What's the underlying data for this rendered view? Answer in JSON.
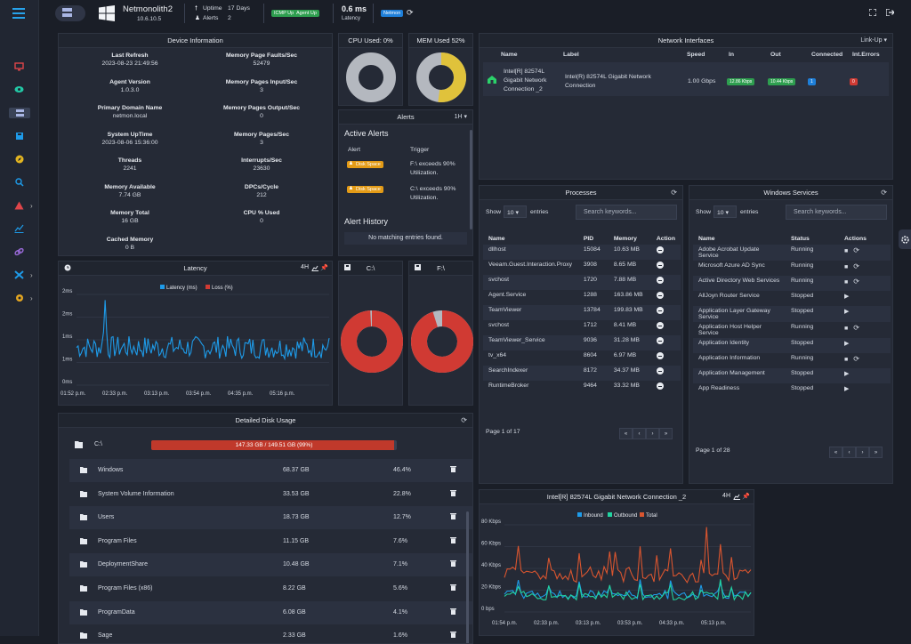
{
  "topbar": {
    "hostname": "Netmonolith2",
    "ip": "10.6.10.5",
    "uptime_label": "Uptime",
    "uptime_value": "17 Days",
    "alerts_label": "Alerts",
    "alerts_value": "2",
    "icmp_badge": "ICMP Up",
    "agent_badge": "Agent Up",
    "latency_value": "0.6 ms",
    "latency_label": "Latency",
    "netmon_badge": "Netmon"
  },
  "device_info": {
    "title": "Device Information",
    "items": [
      {
        "label": "Last Refresh",
        "value": "2023-08-23 21:49:56"
      },
      {
        "label": "Memory Page Faults/Sec",
        "value": "52479"
      },
      {
        "label": "Agent Version",
        "value": "1.0.3.0"
      },
      {
        "label": "Memory Pages Input/Sec",
        "value": "3"
      },
      {
        "label": "Primary Domain Name",
        "value": "netmon.local"
      },
      {
        "label": "Memory Pages Output/Sec",
        "value": "0"
      },
      {
        "label": "System UpTime",
        "value": "2023-08-06 15:36:00"
      },
      {
        "label": "Memory Pages/Sec",
        "value": "3"
      },
      {
        "label": "Threads",
        "value": "2241"
      },
      {
        "label": "Interrupts/Sec",
        "value": "23630"
      },
      {
        "label": "Memory Available",
        "value": "7.74 GB"
      },
      {
        "label": "DPCs/Cycle",
        "value": "212"
      },
      {
        "label": "Memory Total",
        "value": "16 GB"
      },
      {
        "label": "CPU % Used",
        "value": "0"
      },
      {
        "label": "Cached Memory",
        "value": "0 B"
      }
    ]
  },
  "cpu": {
    "title": "CPU Used: 0%",
    "used": 0
  },
  "mem": {
    "title": "MEM Used 52%",
    "used": 52
  },
  "alerts": {
    "title": "Alerts",
    "range": "1H",
    "active_title": "Active Alerts",
    "col_alert": "Alert",
    "col_trigger": "Trigger",
    "items": [
      {
        "badge": "Disk Space",
        "trigger": "F:\\ exceeds 90% Utilization."
      },
      {
        "badge": "Disk Space",
        "trigger": "C:\\ exceeds 90% Utilization."
      }
    ],
    "history_title": "Alert History",
    "history_empty": "No matching entries found."
  },
  "netif": {
    "title": "Network Interfaces",
    "filter": "Link-Up",
    "cols": [
      "Name",
      "Label",
      "Speed",
      "In",
      "Out",
      "Connected",
      "Int.Errors"
    ],
    "row": {
      "name": "Intel[R] 82574L Gigabit Network Connection _2",
      "label": "Intel(R) 82574L Gigabit Network Connection",
      "speed": "1.00 Gbps",
      "in": "12.86 Kbps",
      "out": "10.44 Kbps",
      "connected": "1",
      "errors": "0"
    }
  },
  "latency": {
    "title": "Latency",
    "range": "4H",
    "legend_latency": "Latency (ms)",
    "legend_loss": "Loss (%)",
    "yticks": [
      "2ms",
      "2ms",
      "1ms",
      "1ms",
      "0ms"
    ],
    "xticks": [
      "01:52 p.m.",
      "02:33 p.m.",
      "03:13 p.m.",
      "03:54 p.m.",
      "04:35 p.m.",
      "05:16 p.m."
    ]
  },
  "disk_c": {
    "title": "C:\\",
    "used": 99
  },
  "disk_f": {
    "title": "F:\\",
    "used": 95
  },
  "processes": {
    "title": "Processes",
    "show": "Show",
    "entries": "entries",
    "page_size": "10",
    "search": "Search keywords...",
    "cols": [
      "Name",
      "PID",
      "Memory",
      "Action"
    ],
    "rows": [
      {
        "name": "dllhost",
        "pid": "15084",
        "mem": "10.63 MB"
      },
      {
        "name": "Veeam.Guest.Interaction.Proxy",
        "pid": "3908",
        "mem": "8.65 MB"
      },
      {
        "name": "svchost",
        "pid": "1720",
        "mem": "7.88 MB"
      },
      {
        "name": "Agent.Service",
        "pid": "1288",
        "mem": "163.86 MB"
      },
      {
        "name": "TeamViewer",
        "pid": "13784",
        "mem": "199.83 MB"
      },
      {
        "name": "svchost",
        "pid": "1712",
        "mem": "8.41 MB"
      },
      {
        "name": "TeamViewer_Service",
        "pid": "9036",
        "mem": "31.28 MB"
      },
      {
        "name": "tv_x64",
        "pid": "8604",
        "mem": "6.97 MB"
      },
      {
        "name": "SearchIndexer",
        "pid": "8172",
        "mem": "34.37 MB"
      },
      {
        "name": "RuntimeBroker",
        "pid": "9464",
        "mem": "33.32 MB"
      }
    ],
    "page_info": "Page 1 of 17"
  },
  "services": {
    "title": "Windows Services",
    "show": "Show",
    "entries": "entries",
    "page_size": "10",
    "search": "Search keywords...",
    "cols": [
      "Name",
      "Status",
      "Actions"
    ],
    "rows": [
      {
        "name": "Adobe Acrobat Update Service",
        "status": "Running"
      },
      {
        "name": "Microsoft Azure AD Sync",
        "status": "Running"
      },
      {
        "name": "Active Directory Web Services",
        "status": "Running"
      },
      {
        "name": "AllJoyn Router Service",
        "status": "Stopped"
      },
      {
        "name": "Application Layer Gateway Service",
        "status": "Stopped"
      },
      {
        "name": "Application Host Helper Service",
        "status": "Running"
      },
      {
        "name": "Application Identity",
        "status": "Stopped"
      },
      {
        "name": "Application Information",
        "status": "Running"
      },
      {
        "name": "Application Management",
        "status": "Stopped"
      },
      {
        "name": "App Readiness",
        "status": "Stopped"
      }
    ],
    "page_info": "Page 1 of 28"
  },
  "disk_usage": {
    "title": "Detailed Disk Usage",
    "drive": "C:\\",
    "drive_bar": "147.33 GB / 149.51 GB (99%)",
    "drive_pct": 99,
    "rows": [
      {
        "name": "Windows",
        "size": "68.37 GB",
        "pct": "46.4%"
      },
      {
        "name": "System Volume Information",
        "size": "33.53 GB",
        "pct": "22.8%"
      },
      {
        "name": "Users",
        "size": "18.73 GB",
        "pct": "12.7%"
      },
      {
        "name": "Program Files",
        "size": "11.15 GB",
        "pct": "7.6%"
      },
      {
        "name": "DeploymentShare",
        "size": "10.48 GB",
        "pct": "7.1%"
      },
      {
        "name": "Program Files (x86)",
        "size": "8.22 GB",
        "pct": "5.6%"
      },
      {
        "name": "ProgramData",
        "size": "6.08 GB",
        "pct": "4.1%"
      },
      {
        "name": "Sage",
        "size": "2.33 GB",
        "pct": "1.6%"
      }
    ]
  },
  "net_chart": {
    "title": "Intel[R] 82574L Gigabit Network Connection _2",
    "range": "4H",
    "legend": [
      "Inbound",
      "Outbound",
      "Total"
    ],
    "yticks": [
      "80 Kbps",
      "60 Kbps",
      "40 Kbps",
      "20 Kbps",
      "0 bps"
    ],
    "xticks": [
      "01:54 p.m.",
      "02:33 p.m.",
      "03:13 p.m.",
      "03:53 p.m.",
      "04:33 p.m.",
      "05:13 p.m."
    ]
  },
  "colors": {
    "accent": "#1e9be9",
    "inbound": "#1e9be9",
    "outbound": "#22d3a0",
    "total": "#d9552f",
    "danger": "#d03a33",
    "disk_badge": "#e39b17",
    "mem_donut": "#e0c23b",
    "donut_bg": "#b4b8bf"
  }
}
